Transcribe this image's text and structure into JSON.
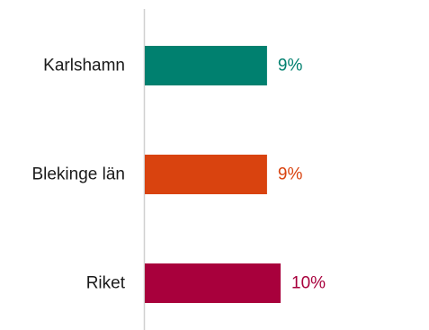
{
  "chart_data": {
    "type": "bar",
    "orientation": "horizontal",
    "categories": [
      "Karlshamn",
      "Blekinge län",
      "Riket"
    ],
    "values": [
      9,
      9,
      10
    ],
    "value_labels": [
      "9%",
      "9%",
      "10%"
    ],
    "colors": [
      "#00806f",
      "#d9430f",
      "#a8003c"
    ],
    "unit": "%",
    "xlim": [
      0,
      14.2
    ],
    "grid": false,
    "legend": "none"
  }
}
